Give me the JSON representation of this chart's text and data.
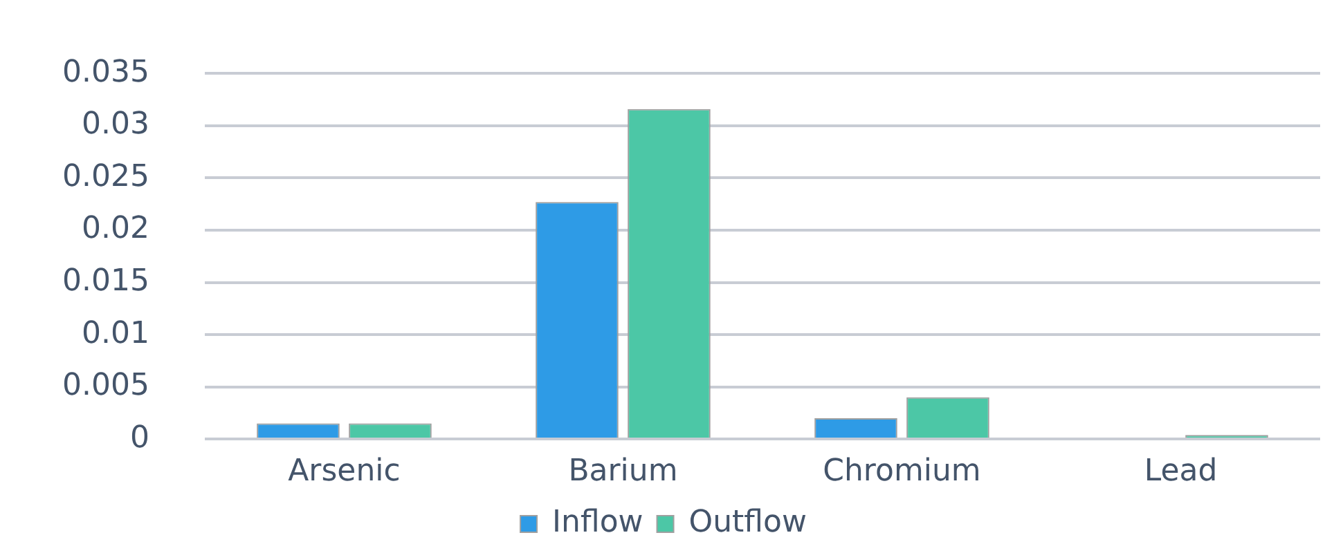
{
  "chart_data": {
    "type": "bar",
    "categories": [
      "Arsenic",
      "Barium",
      "Chromium",
      "Lead"
    ],
    "series": [
      {
        "name": "Inflow",
        "color": "#2e9be6",
        "values": [
          0.0015,
          0.0227,
          0.002,
          0
        ]
      },
      {
        "name": "Outflow",
        "color": "#4cc7a6",
        "values": [
          0.0015,
          0.0316,
          0.004,
          0.0004
        ]
      }
    ],
    "ylim": [
      0,
      0.035
    ],
    "yticks": [
      0,
      0.005,
      0.01,
      0.015,
      0.02,
      0.025,
      0.03,
      0.035
    ],
    "grid": "y",
    "legend": "bottom"
  }
}
